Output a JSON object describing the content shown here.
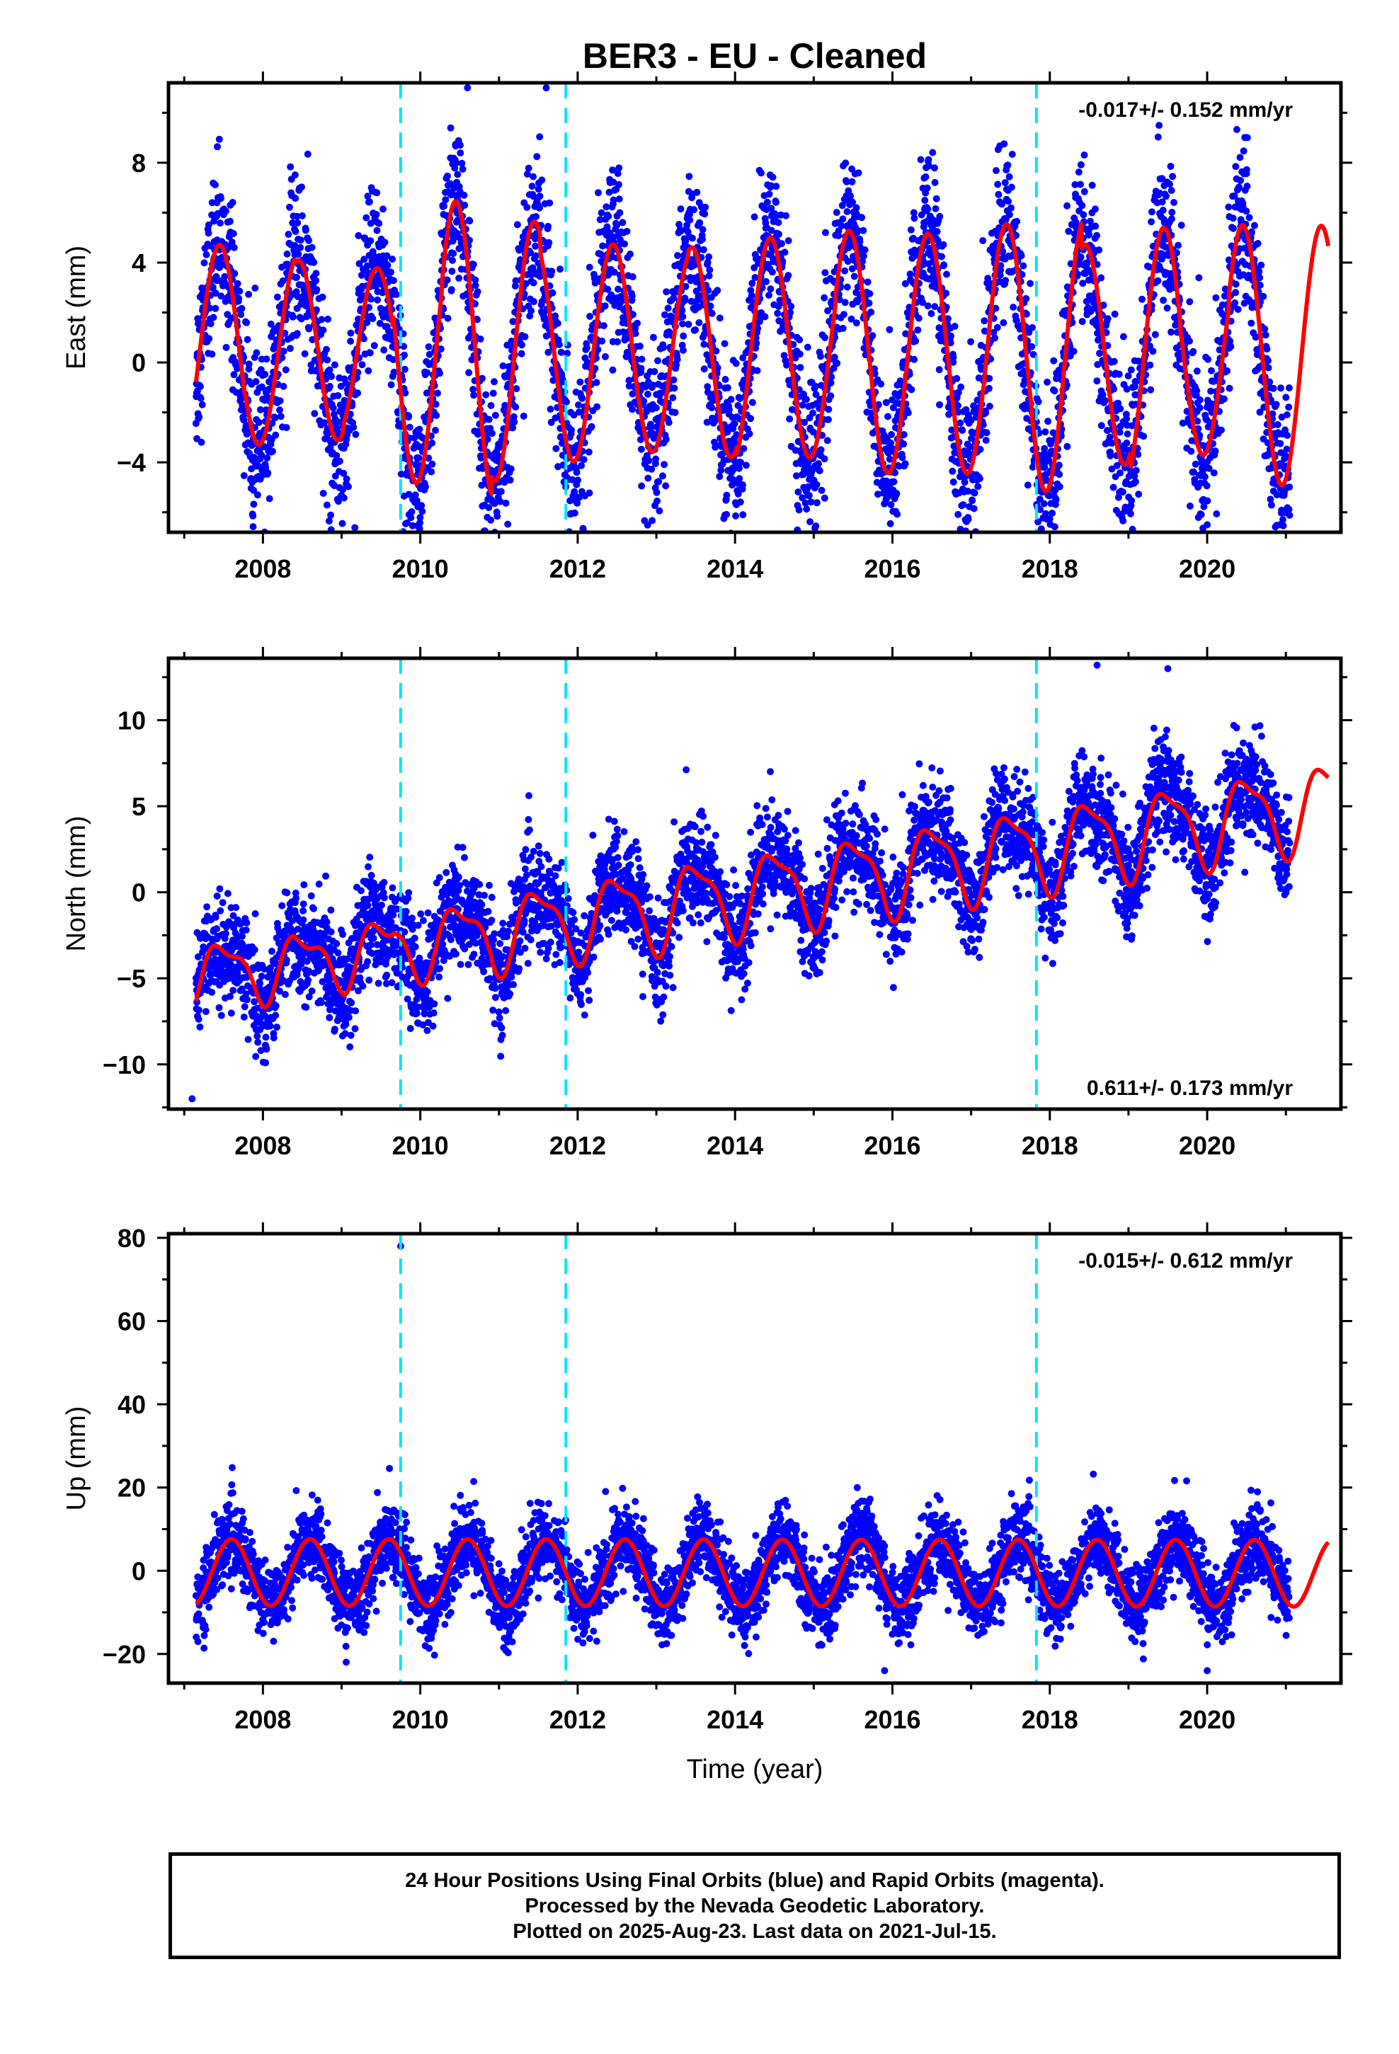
{
  "title": "BER3  - EU - Cleaned",
  "xlabel": "Time (year)",
  "footer": {
    "lines": [
      "24 Hour Positions Using Final Orbits (blue) and Rapid Orbits (magenta).",
      "Processed by the Nevada Geodetic Laboratory.",
      "Plotted on 2025-Aug-23. Last data on 2021-Jul-15."
    ]
  },
  "colors": {
    "points": "#0000ff",
    "model": "#ff0000",
    "offsets": "#00e5ff",
    "axes": "#000000"
  },
  "chart_data": [
    {
      "type": "scatter",
      "ylabel": "East (mm)",
      "rate_label": "-0.017+/- 0.152 mm/yr",
      "rate_position": "top-right",
      "xlim": [
        2006.8,
        2021.7
      ],
      "ylim": [
        -6.8,
        11.2
      ],
      "x_ticks": [
        2008,
        2010,
        2012,
        2014,
        2016,
        2018,
        2020
      ],
      "y_ticks": [
        -4,
        0,
        4,
        8
      ],
      "offset_lines": [
        2009.75,
        2011.85,
        2017.83
      ],
      "data_start": 2007.15,
      "data_end": 2021.05,
      "model_end": 2021.54,
      "model": {
        "trend_mm_per_yr": -0.017,
        "annual_amplitude": [
          4.2,
          3.8,
          3.6,
          3.3,
          5.3,
          6.0,
          5.2,
          4.4,
          4.3,
          4.0,
          4.2,
          4.6,
          4.2,
          4.9,
          4.8,
          4.8,
          5.2,
          5.5,
          4.4,
          5.1,
          4.0,
          5.2,
          5.2
        ],
        "annual_phase_peak": 0.45,
        "offset": 0.4
      },
      "series": [
        {
          "name": "Final Orbits (blue)",
          "points_shown": "daily positions",
          "scatter_mm": 1.6,
          "outliers": [
            [
              2010.6,
              11.0
            ],
            [
              2011.6,
              11.0
            ],
            [
              2014.1,
              -6.1
            ],
            [
              2020.0,
              -6.5
            ]
          ]
        },
        {
          "name": "model fit (red)"
        }
      ]
    },
    {
      "type": "scatter",
      "ylabel": "North (mm)",
      "rate_label": "0.611+/- 0.173 mm/yr",
      "rate_position": "bottom-right",
      "xlim": [
        2006.8,
        2021.7
      ],
      "ylim": [
        -12.6,
        13.6
      ],
      "x_ticks": [
        2008,
        2010,
        2012,
        2014,
        2016,
        2018,
        2020
      ],
      "y_ticks": [
        -10,
        -5,
        0,
        5,
        10
      ],
      "offset_lines": [
        2009.75,
        2011.85,
        2017.83
      ],
      "data_start": 2007.15,
      "data_end": 2021.05,
      "model_end": 2021.54,
      "model": {
        "trend_mm_per_yr": 0.611,
        "start_value": -7.5,
        "annual_amplitude": [
          2.5,
          2.2,
          2.1,
          2.2,
          2.4,
          2.5,
          2.8,
          2.8,
          2.9,
          3.1,
          3.0,
          3.0,
          3.0,
          3.0,
          3.1
        ],
        "annual_phase_peak": 0.5
      },
      "series": [
        {
          "name": "Final Orbits (blue)",
          "points_shown": "daily positions",
          "scatter_mm": 1.5,
          "outliers": [
            [
              2007.1,
              -12.0
            ],
            [
              2018.6,
              13.2
            ],
            [
              2019.5,
              13.0
            ]
          ]
        },
        {
          "name": "model fit (red)"
        }
      ]
    },
    {
      "type": "scatter",
      "ylabel": "Up (mm)",
      "rate_label": "-0.015+/- 0.612 mm/yr",
      "rate_position": "top-right",
      "xlim": [
        2006.8,
        2021.7
      ],
      "ylim": [
        -27,
        81
      ],
      "x_ticks": [
        2008,
        2010,
        2012,
        2014,
        2016,
        2018,
        2020
      ],
      "y_ticks": [
        -20,
        0,
        20,
        40,
        60,
        80
      ],
      "offset_lines": [
        2009.75,
        2011.85,
        2017.83
      ],
      "data_start": 2007.15,
      "data_end": 2021.05,
      "model_end": 2021.54,
      "model": {
        "trend_mm_per_yr": -0.015,
        "annual_amplitude": 8.0,
        "annual_phase_peak": 0.6,
        "offset": -0.5
      },
      "series": [
        {
          "name": "Final Orbits (blue)",
          "points_shown": "daily positions",
          "scatter_mm": 4.5,
          "outliers": [
            [
              2009.75,
              78.0
            ],
            [
              2015.9,
              -24.0
            ],
            [
              2020.0,
              -24.0
            ]
          ]
        },
        {
          "name": "model fit (red)"
        }
      ]
    }
  ]
}
